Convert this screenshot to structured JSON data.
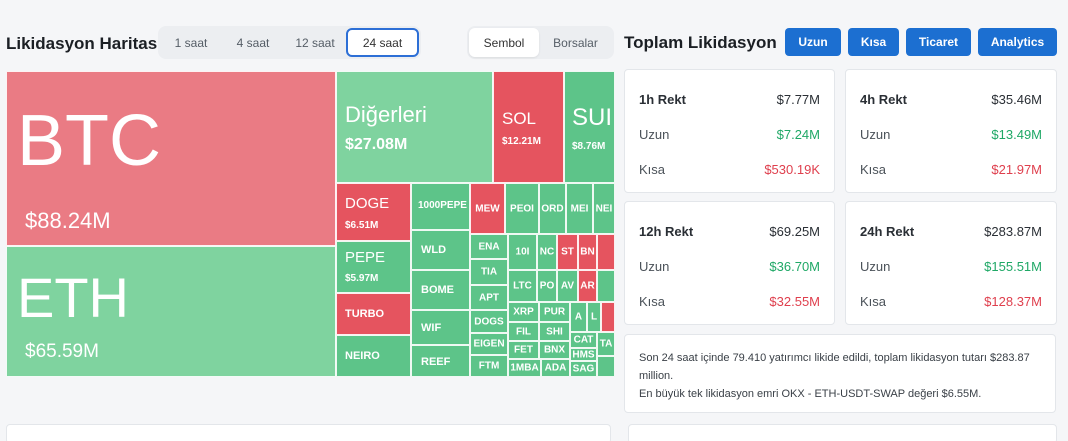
{
  "heatmap": {
    "title": "Likidasyon Haritası",
    "periods": [
      "1 saat",
      "4 saat",
      "12 saat",
      "24 saat"
    ],
    "active_period": "24 saat",
    "views": [
      "Sembol",
      "Borsalar"
    ],
    "active_view": "Sembol",
    "cells": {
      "btc": {
        "name": "BTC",
        "value": "$88.24M"
      },
      "eth": {
        "name": "ETH",
        "value": "$65.59M"
      },
      "others": {
        "name": "Diğerleri",
        "value": "$27.08M"
      },
      "sol": {
        "name": "SOL",
        "value": "$12.21M"
      },
      "sui": {
        "name": "SUI",
        "value": "$8.76M"
      },
      "doge": {
        "name": "DOGE",
        "value": "$6.51M"
      },
      "pepe": {
        "name": "PEPE",
        "value": "$5.97M"
      },
      "turbo": {
        "name": "TURBO"
      },
      "neiro": {
        "name": "NEIRO"
      },
      "pepe1000": {
        "name": "1000PEPE"
      },
      "wld": {
        "name": "WLD"
      },
      "bome": {
        "name": "BOME"
      },
      "wif": {
        "name": "WIF"
      },
      "reef": {
        "name": "REEF"
      },
      "mew": {
        "name": "MEW"
      },
      "peo": {
        "name": "PEOI"
      },
      "ord": {
        "name": "ORD"
      },
      "mew2": {
        "name": "MEI"
      },
      "ne": {
        "name": "NEI"
      },
      "ena": {
        "name": "ENA"
      },
      "tia": {
        "name": "TIA"
      },
      "apt": {
        "name": "APT"
      },
      "dogs": {
        "name": "DOGS"
      },
      "eigen": {
        "name": "EIGEN"
      },
      "ftm": {
        "name": "FTM"
      },
      "c10": {
        "name": "10I"
      },
      "nc": {
        "name": "NC"
      },
      "st": {
        "name": "ST"
      },
      "bn": {
        "name": "BN"
      },
      "ltc": {
        "name": "LTC"
      },
      "po": {
        "name": "PO"
      },
      "av": {
        "name": "AV"
      },
      "ar": {
        "name": "AR"
      },
      "xrp": {
        "name": "XRP"
      },
      "pur": {
        "name": "PUR"
      },
      "a": {
        "name": "A"
      },
      "l": {
        "name": "L"
      },
      "fil": {
        "name": "FIL"
      },
      "shi": {
        "name": "SHI"
      },
      "fet": {
        "name": "FET"
      },
      "bnx": {
        "name": "BNX"
      },
      "cat": {
        "name": "CAT"
      },
      "ta": {
        "name": "TA"
      },
      "hms": {
        "name": "HMS"
      },
      "mb": {
        "name": "1MBA"
      },
      "ada": {
        "name": "ADA"
      },
      "sag": {
        "name": "SAG"
      }
    }
  },
  "total": {
    "title": "Toplam Likidasyon",
    "buttons": [
      "Uzun",
      "Kısa",
      "Ticaret",
      "Analytics"
    ],
    "cards": [
      {
        "period": "1h Rekt",
        "total": "$7.77M",
        "long_label": "Uzun",
        "long": "$7.24M",
        "short_label": "Kısa",
        "short": "$530.19K"
      },
      {
        "period": "4h Rekt",
        "total": "$35.46M",
        "long_label": "Uzun",
        "long": "$13.49M",
        "short_label": "Kısa",
        "short": "$21.97M"
      },
      {
        "period": "12h Rekt",
        "total": "$69.25M",
        "long_label": "Uzun",
        "long": "$36.70M",
        "short_label": "Kısa",
        "short": "$32.55M"
      },
      {
        "period": "24h Rekt",
        "total": "$283.87M",
        "long_label": "Uzun",
        "long": "$155.51M",
        "short_label": "Kısa",
        "short": "$128.37M"
      }
    ],
    "summary_line1": "Son 24 saat içinde 79.410 yatırımcı likide edildi, toplam likidasyon tutarı $283.87 million.",
    "summary_line2": "En büyük tek likidasyon emri OKX - ETH-USDT-SWAP değeri $6.55M."
  },
  "colors": {
    "long": "#1fa866",
    "short": "#df3f4d",
    "accent": "#1c6fd1",
    "tile_green": "#5dc489",
    "tile_red": "#e5545f"
  }
}
